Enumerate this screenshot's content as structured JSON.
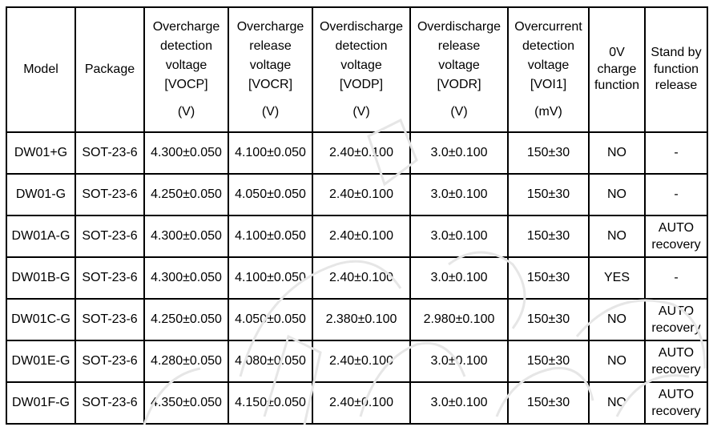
{
  "table": {
    "headers": [
      {
        "lines": [
          "Model"
        ],
        "unit": ""
      },
      {
        "lines": [
          "Package"
        ],
        "unit": ""
      },
      {
        "lines": [
          "Overcharge",
          "detection",
          "voltage",
          "[VOCP]"
        ],
        "unit": "(V)"
      },
      {
        "lines": [
          "Overcharge",
          "release",
          "voltage",
          "[VOCR]"
        ],
        "unit": "(V)"
      },
      {
        "lines": [
          "Overdischarge",
          "detection",
          "voltage",
          "[VODP]"
        ],
        "unit": "(V)"
      },
      {
        "lines": [
          "Overdischarge",
          "release",
          "voltage",
          "[VODR]"
        ],
        "unit": "(V)"
      },
      {
        "lines": [
          "Overcurrent",
          "detection",
          "voltage",
          "[VOI1]"
        ],
        "unit": "(mV)"
      },
      {
        "lines": [
          "0V",
          "charge",
          "function"
        ],
        "unit": ""
      },
      {
        "lines": [
          "Stand by",
          "function",
          "release"
        ],
        "unit": ""
      }
    ],
    "rows": [
      {
        "model": "DW01+G",
        "package": "SOT-23-6",
        "vocp": "4.300±0.050",
        "vocr": "4.100±0.050",
        "vodp": "2.40±0.100",
        "vodr": "3.0±0.100",
        "voi1": "150±30",
        "zero_v": "NO",
        "standby": [
          "-"
        ]
      },
      {
        "model": "DW01-G",
        "package": "SOT-23-6",
        "vocp": "4.250±0.050",
        "vocr": "4.050±0.050",
        "vodp": "2.40±0.100",
        "vodr": "3.0±0.100",
        "voi1": "150±30",
        "zero_v": "NO",
        "standby": [
          "-"
        ]
      },
      {
        "model": "DW01A-G",
        "package": "SOT-23-6",
        "vocp": "4.300±0.050",
        "vocr": "4.100±0.050",
        "vodp": "2.40±0.100",
        "vodr": "3.0±0.100",
        "voi1": "150±30",
        "zero_v": "NO",
        "standby": [
          "AUTO",
          "recovery"
        ]
      },
      {
        "model": "DW01B-G",
        "package": "SOT-23-6",
        "vocp": "4.300±0.050",
        "vocr": "4.100±0.050",
        "vodp": "2.40±0.100",
        "vodr": "3.0±0.100",
        "voi1": "150±30",
        "zero_v": "YES",
        "standby": [
          "-"
        ]
      },
      {
        "model": "DW01C-G",
        "package": "SOT-23-6",
        "vocp": "4.250±0.050",
        "vocr": "4.050±0.050",
        "vodp": "2.380±0.100",
        "vodr": "2.980±0.100",
        "voi1": "150±30",
        "zero_v": "NO",
        "standby": [
          "AUTO",
          "recovery"
        ]
      },
      {
        "model": "DW01E-G",
        "package": "SOT-23-6",
        "vocp": "4.280±0.050",
        "vocr": "4.080±0.050",
        "vodp": "2.40±0.100",
        "vodr": "3.0±0.100",
        "voi1": "150±30",
        "zero_v": "NO",
        "standby": [
          "AUTO",
          "recovery"
        ]
      },
      {
        "model": "DW01F-G",
        "package": "SOT-23-6",
        "vocp": "4.350±0.050",
        "vocr": "4.150±0.050",
        "vodp": "2.40±0.100",
        "vodr": "3.0±0.100",
        "voi1": "150±30",
        "zero_v": "NO",
        "standby": [
          "AUTO",
          "recovery"
        ]
      }
    ]
  },
  "colors": {
    "border": "#000000",
    "watermark": "#e6e6e6"
  }
}
